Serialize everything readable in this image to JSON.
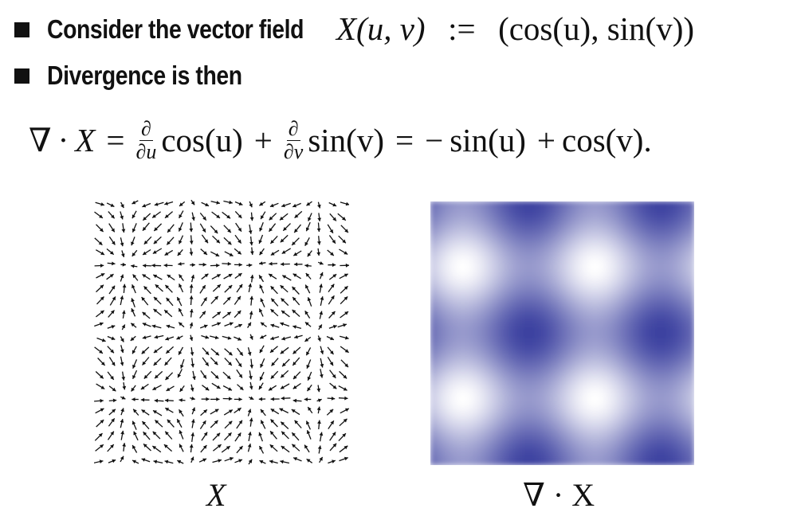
{
  "bullets": [
    {
      "text": "Consider the vector field"
    },
    {
      "text": "Divergence is then"
    }
  ],
  "definition": {
    "lhs": "X(u, v)",
    "assign": ":=",
    "rhs": "(cos(u), sin(v))"
  },
  "equation": {
    "nabla": "∇",
    "dot": "·",
    "x": "X",
    "equals": "=",
    "partial": "∂",
    "du": "∂u",
    "dv": "∂v",
    "cos_u": "cos(u)",
    "plus": "+",
    "sin_v": "sin(v)",
    "minus": "−",
    "sin_u": "sin(u)",
    "cos_v": "cos(v).",
    "period": ""
  },
  "captions": {
    "left": "X",
    "right": "∇ · X"
  },
  "colors": {
    "arrow": "#111111",
    "divergence_high": "#3c41a0",
    "divergence_low": "#ffffff"
  },
  "field": {
    "function": "X(u,v) = (cos(u), sin(v))",
    "u_range": [
      -6.283,
      6.283
    ],
    "v_range": [
      -6.283,
      6.283
    ],
    "grid": 22
  }
}
